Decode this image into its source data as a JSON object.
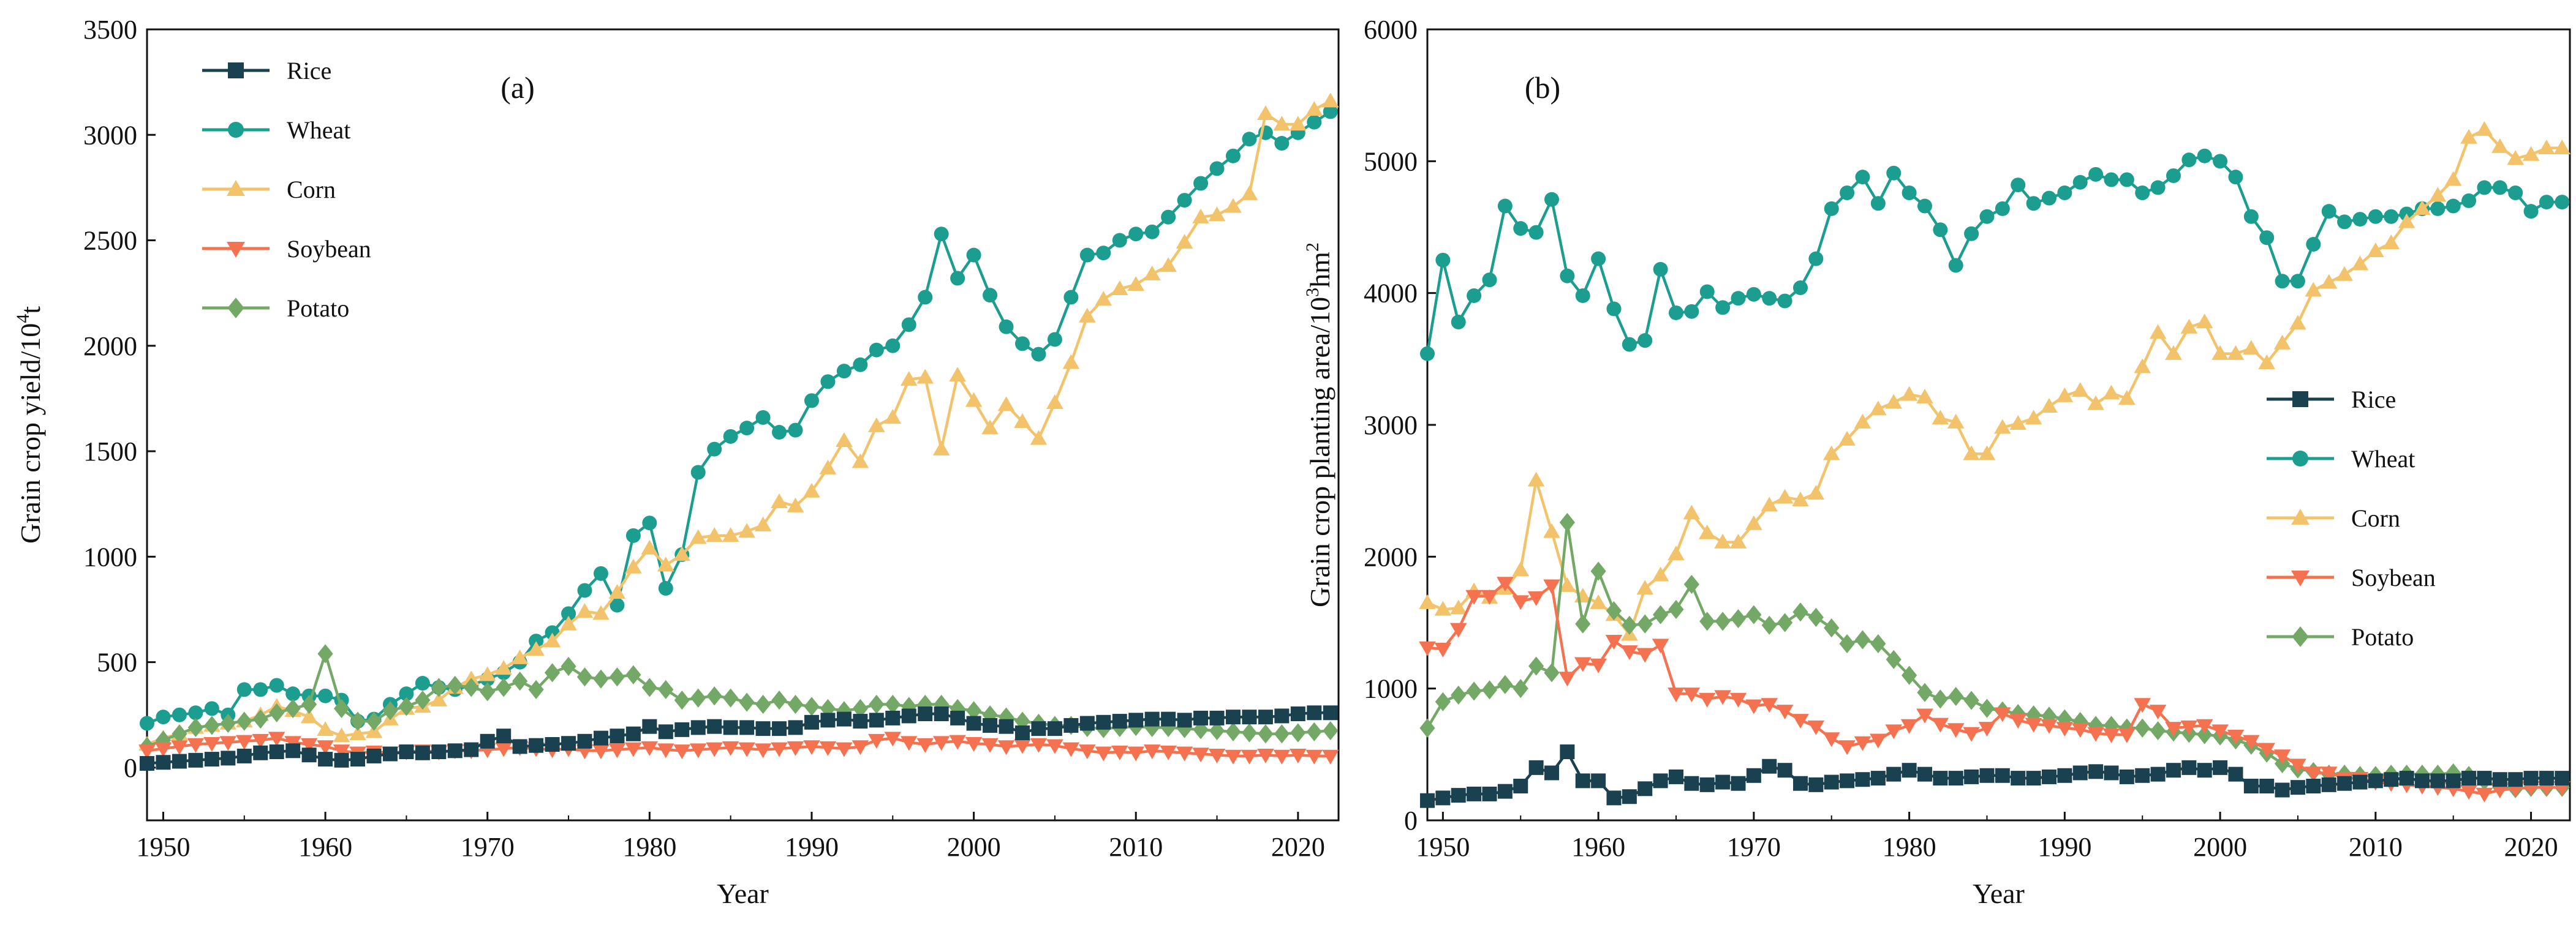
{
  "figure": {
    "panels": [
      "a",
      "b"
    ]
  },
  "series_styles": [
    {
      "name": "Rice",
      "color": "#1a4150",
      "marker": "square"
    },
    {
      "name": "Wheat",
      "color": "#1b9d90",
      "marker": "circle"
    },
    {
      "name": "Corn",
      "color": "#f2c36a",
      "marker": "triangle-up"
    },
    {
      "name": "Soybean",
      "color": "#f4724f",
      "marker": "triangle-down"
    },
    {
      "name": "Potato",
      "color": "#74a867",
      "marker": "diamond"
    }
  ],
  "chart_data": [
    {
      "id": "a",
      "type": "line",
      "panel_label": "(a)",
      "title": "",
      "xlabel": "Year",
      "ylabel": "Grain crop yield/10",
      "ylabel_sup": "4",
      "ylabel_suffix": "t",
      "xlim": [
        1949,
        2022.5
      ],
      "ylim": [
        -250,
        3500
      ],
      "xticks": [
        1950,
        1960,
        1970,
        1980,
        1990,
        2000,
        2010,
        2020
      ],
      "yticks": [
        0,
        500,
        1000,
        1500,
        2000,
        2500,
        3000,
        3500
      ],
      "legend_position": "top-left",
      "x": [
        1949,
        1950,
        1951,
        1952,
        1953,
        1954,
        1955,
        1956,
        1957,
        1958,
        1959,
        1960,
        1961,
        1962,
        1963,
        1964,
        1965,
        1966,
        1967,
        1968,
        1969,
        1970,
        1971,
        1972,
        1973,
        1974,
        1975,
        1976,
        1977,
        1978,
        1979,
        1980,
        1981,
        1982,
        1983,
        1984,
        1985,
        1986,
        1987,
        1988,
        1989,
        1990,
        1991,
        1992,
        1993,
        1994,
        1995,
        1996,
        1997,
        1998,
        1999,
        2000,
        2001,
        2002,
        2003,
        2004,
        2005,
        2006,
        2007,
        2008,
        2009,
        2010,
        2011,
        2012,
        2013,
        2014,
        2015,
        2016,
        2017,
        2018,
        2019,
        2020,
        2021,
        2022
      ],
      "series": [
        {
          "name": "Rice",
          "values": [
            20,
            25,
            30,
            35,
            40,
            45,
            55,
            70,
            75,
            80,
            60,
            40,
            35,
            40,
            55,
            65,
            75,
            70,
            75,
            80,
            85,
            125,
            150,
            100,
            105,
            110,
            115,
            125,
            140,
            150,
            160,
            195,
            170,
            180,
            190,
            195,
            190,
            190,
            185,
            185,
            190,
            215,
            225,
            230,
            220,
            225,
            235,
            245,
            255,
            255,
            235,
            210,
            200,
            195,
            165,
            185,
            185,
            200,
            210,
            215,
            220,
            225,
            230,
            230,
            225,
            235,
            235,
            240,
            240,
            240,
            245,
            255,
            260,
            260
          ]
        },
        {
          "name": "Wheat",
          "values": [
            210,
            240,
            250,
            260,
            280,
            250,
            370,
            370,
            390,
            350,
            340,
            340,
            320,
            220,
            230,
            300,
            350,
            400,
            380,
            370,
            390,
            420,
            450,
            500,
            600,
            640,
            730,
            840,
            920,
            770,
            1100,
            1160,
            850,
            1010,
            1400,
            1510,
            1570,
            1610,
            1660,
            1590,
            1600,
            1740,
            1830,
            1880,
            1910,
            1980,
            2000,
            2100,
            2230,
            2530,
            2320,
            2430,
            2240,
            2090,
            2010,
            1960,
            2030,
            2230,
            2430,
            2440,
            2500,
            2530,
            2540,
            2610,
            2690,
            2770,
            2840,
            2900,
            2980,
            3010,
            2960,
            3010,
            3060,
            3110
          ]
        },
        {
          "name": "Corn",
          "values": [
            110,
            140,
            160,
            190,
            200,
            210,
            220,
            250,
            290,
            270,
            240,
            180,
            150,
            160,
            170,
            230,
            280,
            290,
            320,
            380,
            420,
            440,
            470,
            520,
            560,
            600,
            680,
            740,
            730,
            830,
            950,
            1040,
            960,
            1010,
            1090,
            1100,
            1100,
            1120,
            1150,
            1260,
            1240,
            1310,
            1420,
            1550,
            1450,
            1620,
            1660,
            1840,
            1850,
            1510,
            1860,
            1740,
            1610,
            1720,
            1640,
            1560,
            1730,
            1920,
            2140,
            2220,
            2270,
            2290,
            2340,
            2380,
            2490,
            2610,
            2620,
            2660,
            2720,
            3100,
            3050,
            3050,
            3120,
            3160
          ]
        },
        {
          "name": "Soybean",
          "values": [
            80,
            90,
            100,
            110,
            115,
            120,
            125,
            130,
            140,
            120,
            110,
            100,
            80,
            70,
            75,
            70,
            75,
            80,
            75,
            80,
            80,
            85,
            90,
            95,
            90,
            85,
            90,
            80,
            80,
            85,
            90,
            95,
            85,
            80,
            85,
            90,
            95,
            90,
            85,
            90,
            95,
            100,
            95,
            90,
            100,
            130,
            140,
            120,
            110,
            120,
            125,
            115,
            110,
            100,
            105,
            110,
            105,
            90,
            80,
            70,
            75,
            70,
            80,
            75,
            70,
            65,
            60,
            55,
            55,
            60,
            55,
            60,
            55,
            55
          ]
        },
        {
          "name": "Potato",
          "values": [
            100,
            130,
            160,
            190,
            200,
            210,
            220,
            230,
            260,
            280,
            300,
            540,
            280,
            220,
            220,
            270,
            290,
            320,
            380,
            390,
            380,
            360,
            380,
            410,
            370,
            450,
            480,
            430,
            420,
            430,
            440,
            380,
            370,
            320,
            330,
            340,
            330,
            310,
            300,
            320,
            300,
            290,
            280,
            270,
            280,
            300,
            300,
            290,
            300,
            300,
            280,
            270,
            250,
            240,
            220,
            210,
            200,
            200,
            190,
            185,
            190,
            195,
            190,
            190,
            185,
            180,
            175,
            170,
            165,
            160,
            160,
            165,
            170,
            175
          ]
        }
      ]
    },
    {
      "id": "b",
      "type": "line",
      "panel_label": "(b)",
      "title": "",
      "xlabel": "Year",
      "ylabel": "Grain crop planting area/10",
      "ylabel_sup": "3",
      "ylabel_suffix": "hm",
      "ylabel_sup2": "2",
      "xlim": [
        1949,
        2022.5
      ],
      "ylim": [
        0,
        6000
      ],
      "xticks": [
        1950,
        1960,
        1970,
        1980,
        1990,
        2000,
        2010,
        2020
      ],
      "yticks": [
        0,
        1000,
        2000,
        3000,
        4000,
        5000,
        6000
      ],
      "legend_position": "middle-right",
      "x": [
        1949,
        1950,
        1951,
        1952,
        1953,
        1954,
        1955,
        1956,
        1957,
        1958,
        1959,
        1960,
        1961,
        1962,
        1963,
        1964,
        1965,
        1966,
        1967,
        1968,
        1969,
        1970,
        1971,
        1972,
        1973,
        1974,
        1975,
        1976,
        1977,
        1978,
        1979,
        1980,
        1981,
        1982,
        1983,
        1984,
        1985,
        1986,
        1987,
        1988,
        1989,
        1990,
        1991,
        1992,
        1993,
        1994,
        1995,
        1996,
        1997,
        1998,
        1999,
        2000,
        2001,
        2002,
        2003,
        2004,
        2005,
        2006,
        2007,
        2008,
        2009,
        2010,
        2011,
        2012,
        2013,
        2014,
        2015,
        2016,
        2017,
        2018,
        2019,
        2020,
        2021,
        2022
      ],
      "series": [
        {
          "name": "Rice",
          "values": [
            150,
            170,
            190,
            200,
            200,
            220,
            260,
            400,
            360,
            520,
            300,
            300,
            170,
            180,
            240,
            300,
            330,
            280,
            270,
            290,
            280,
            340,
            410,
            380,
            280,
            270,
            290,
            300,
            310,
            320,
            350,
            380,
            350,
            320,
            320,
            330,
            340,
            340,
            320,
            320,
            330,
            340,
            360,
            370,
            360,
            330,
            340,
            350,
            380,
            400,
            380,
            400,
            350,
            260,
            260,
            230,
            250,
            260,
            270,
            280,
            290,
            300,
            310,
            320,
            300,
            300,
            300,
            320,
            320,
            310,
            310,
            320,
            320,
            320
          ]
        },
        {
          "name": "Wheat",
          "values": [
            3540,
            4250,
            3780,
            3980,
            4100,
            4660,
            4490,
            4460,
            4710,
            4130,
            3980,
            4260,
            3880,
            3610,
            3640,
            4180,
            3850,
            3860,
            4010,
            3890,
            3960,
            3990,
            3960,
            3940,
            4040,
            4260,
            4640,
            4760,
            4880,
            4680,
            4910,
            4760,
            4660,
            4480,
            4210,
            4450,
            4580,
            4640,
            4820,
            4680,
            4720,
            4760,
            4840,
            4900,
            4860,
            4860,
            4760,
            4800,
            4890,
            5010,
            5040,
            5000,
            4880,
            4580,
            4420,
            4090,
            4090,
            4370,
            4620,
            4540,
            4560,
            4580,
            4580,
            4600,
            4640,
            4640,
            4660,
            4700,
            4800,
            4800,
            4760,
            4620,
            4690,
            4690
          ]
        },
        {
          "name": "Corn",
          "values": [
            1650,
            1600,
            1610,
            1740,
            1690,
            1760,
            1900,
            2580,
            2190,
            1780,
            1700,
            1650,
            1560,
            1410,
            1760,
            1860,
            2020,
            2330,
            2180,
            2110,
            2110,
            2250,
            2390,
            2450,
            2430,
            2480,
            2780,
            2890,
            3020,
            3120,
            3170,
            3230,
            3210,
            3050,
            3020,
            2780,
            2780,
            2980,
            3010,
            3050,
            3140,
            3220,
            3260,
            3160,
            3240,
            3200,
            3440,
            3700,
            3540,
            3740,
            3780,
            3540,
            3540,
            3580,
            3470,
            3620,
            3770,
            4020,
            4080,
            4140,
            4220,
            4320,
            4380,
            4540,
            4640,
            4740,
            4860,
            5180,
            5240,
            5110,
            5020,
            5050,
            5100,
            5100
          ]
        },
        {
          "name": "Soybean",
          "values": [
            1310,
            1300,
            1450,
            1700,
            1700,
            1800,
            1660,
            1690,
            1780,
            1080,
            1190,
            1180,
            1360,
            1280,
            1260,
            1330,
            960,
            960,
            920,
            940,
            920,
            870,
            880,
            830,
            760,
            710,
            620,
            560,
            590,
            610,
            680,
            720,
            800,
            730,
            690,
            660,
            700,
            810,
            760,
            730,
            720,
            700,
            690,
            660,
            650,
            650,
            880,
            830,
            700,
            710,
            720,
            680,
            640,
            600,
            540,
            490,
            420,
            360,
            360,
            320,
            320,
            290,
            280,
            270,
            260,
            250,
            240,
            220,
            200,
            230,
            240,
            250,
            250,
            250
          ]
        },
        {
          "name": "Potato",
          "values": [
            700,
            900,
            950,
            980,
            990,
            1030,
            1000,
            1170,
            1120,
            2260,
            1490,
            1890,
            1590,
            1480,
            1490,
            1560,
            1600,
            1790,
            1510,
            1510,
            1530,
            1560,
            1480,
            1500,
            1580,
            1540,
            1460,
            1340,
            1370,
            1340,
            1220,
            1100,
            970,
            920,
            940,
            910,
            850,
            830,
            810,
            800,
            790,
            770,
            750,
            720,
            720,
            700,
            700,
            680,
            670,
            660,
            650,
            640,
            610,
            570,
            510,
            430,
            390,
            370,
            350,
            350,
            340,
            340,
            350,
            350,
            350,
            350,
            360,
            340,
            300,
            250,
            240,
            250,
            250,
            250
          ]
        }
      ]
    }
  ]
}
